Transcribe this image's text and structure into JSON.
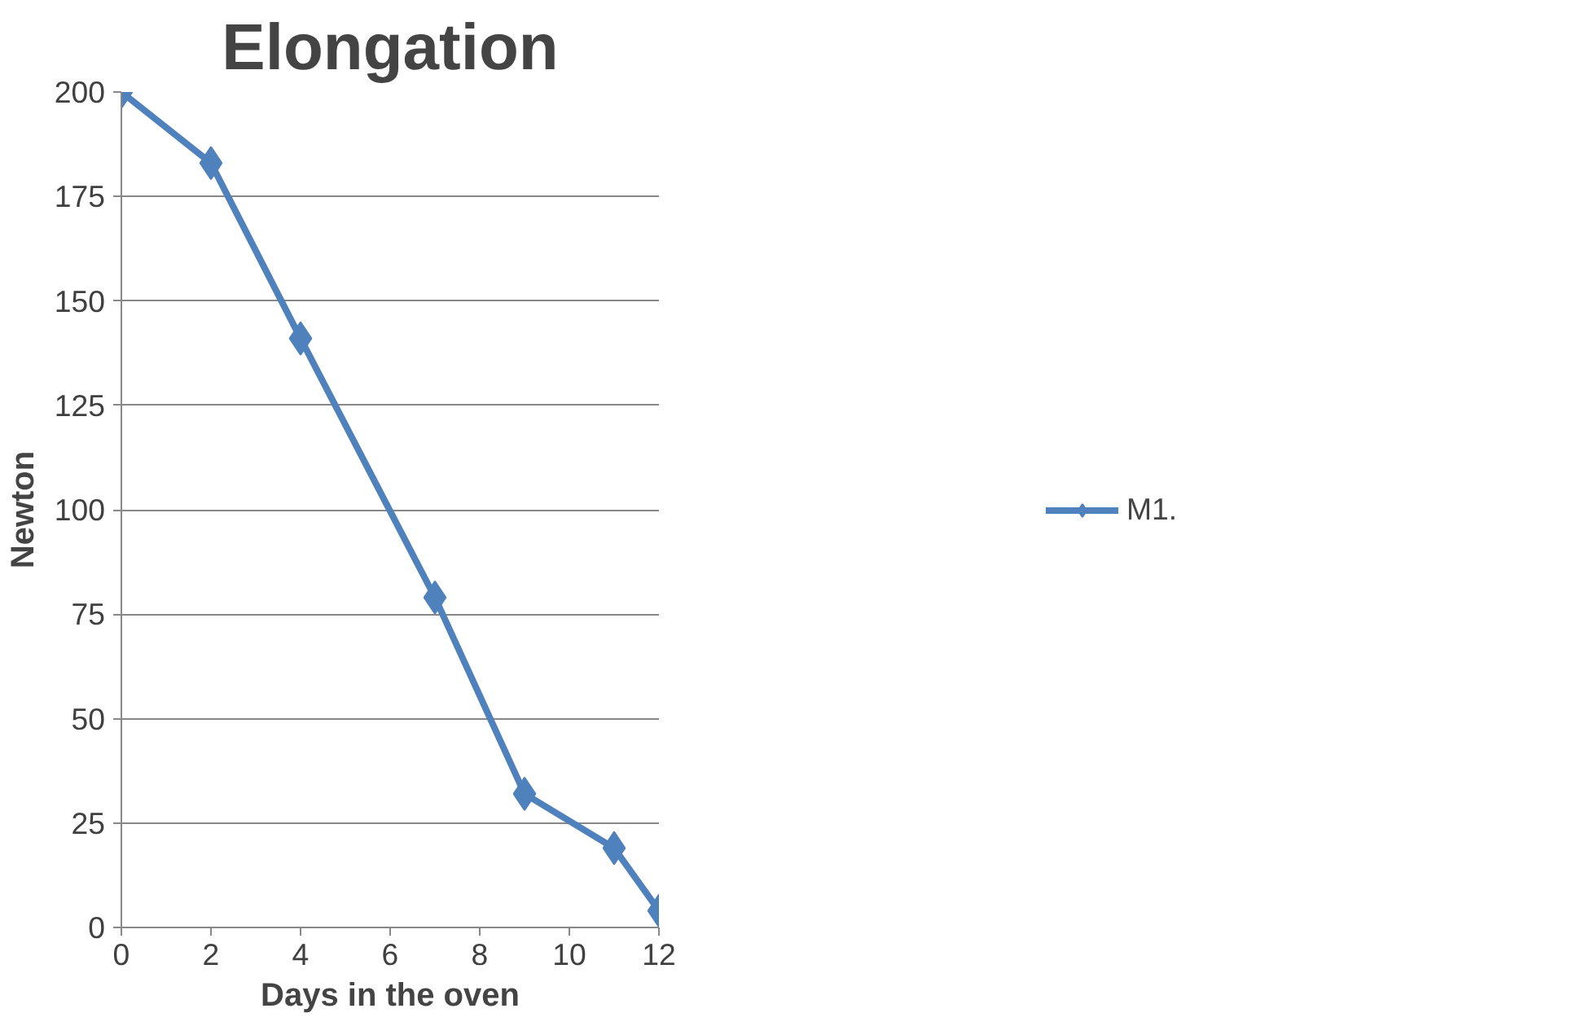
{
  "chart_data": {
    "type": "line",
    "title": "Elongation",
    "xlabel": "Days in the oven",
    "ylabel": "Newton",
    "x": [
      0,
      2,
      4,
      7,
      9,
      11,
      12
    ],
    "series": [
      {
        "name": "M1.",
        "color": "#4f81bd",
        "values": [
          200,
          183,
          141,
          79,
          32,
          19,
          4
        ]
      }
    ],
    "xlim": [
      0,
      12
    ],
    "xticks": [
      0,
      2,
      4,
      6,
      8,
      10,
      12
    ],
    "ylim": [
      0,
      200
    ],
    "yticks": [
      0,
      25,
      50,
      75,
      100,
      125,
      150,
      175,
      200
    ],
    "grid": "y",
    "legend": "right",
    "marker": "diamond",
    "line_style": "solid"
  }
}
